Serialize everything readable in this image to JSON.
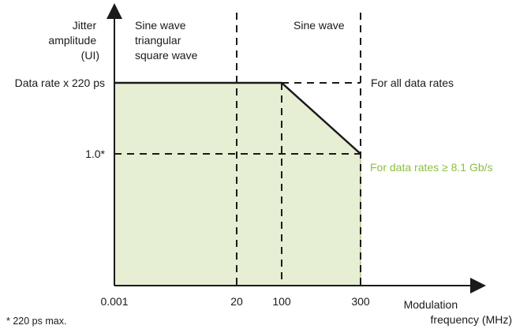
{
  "axes": {
    "y_label": [
      "Jitter",
      "amplitude",
      "(UI)"
    ],
    "x_label": [
      "Modulation",
      "frequency (MHz)"
    ]
  },
  "y_ticks": [
    "Data rate x 220 ps",
    "1.0*"
  ],
  "x_ticks": [
    "0.001",
    "20",
    "100",
    "300"
  ],
  "regions": {
    "left": [
      "Sine wave",
      "triangular",
      "square wave"
    ],
    "right": "Sine wave"
  },
  "annotations": {
    "all_rates": "For all data rates",
    "high_rates": "For data rates ≥ 8.1 Gb/s"
  },
  "footnote": "* 220 ps max.",
  "colors": {
    "fill": "#e6eed3",
    "fill_border": "#9db561",
    "accent_green": "#8cbf3f",
    "ink": "#1a1a1a"
  }
}
